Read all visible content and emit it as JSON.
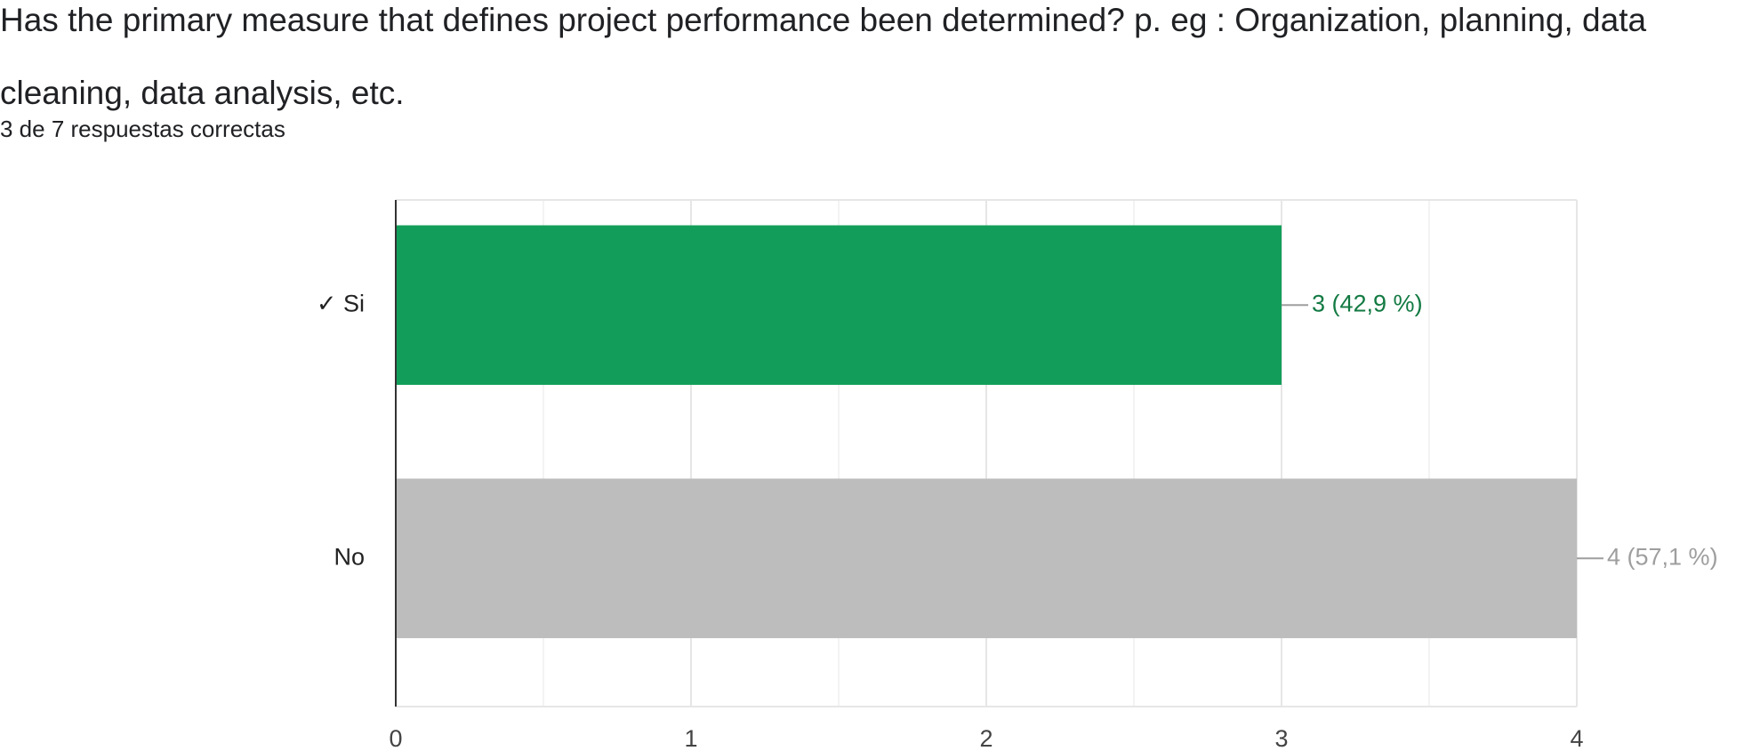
{
  "chart_data": {
    "type": "bar",
    "orientation": "horizontal",
    "title": "Has the primary measure that defines project performance been determined? p. eg : Organization, planning, data cleaning, data analysis, etc.",
    "subtitle": "3 de 7 respuestas correctas",
    "categories": [
      "✓ Si",
      "No"
    ],
    "values": [
      3,
      4
    ],
    "value_labels": [
      "3 (42,9 %)",
      "4 (57,1 %)"
    ],
    "colors": [
      "#129e5a",
      "#bdbdbd"
    ],
    "label_colors": [
      "#137a43",
      "#9e9e9e"
    ],
    "xlim": [
      0,
      4
    ],
    "xticks": [
      0,
      1,
      2,
      3,
      4
    ],
    "minor_xticks": [
      0.5,
      1.5,
      2.5,
      3.5
    ],
    "grid": true
  }
}
